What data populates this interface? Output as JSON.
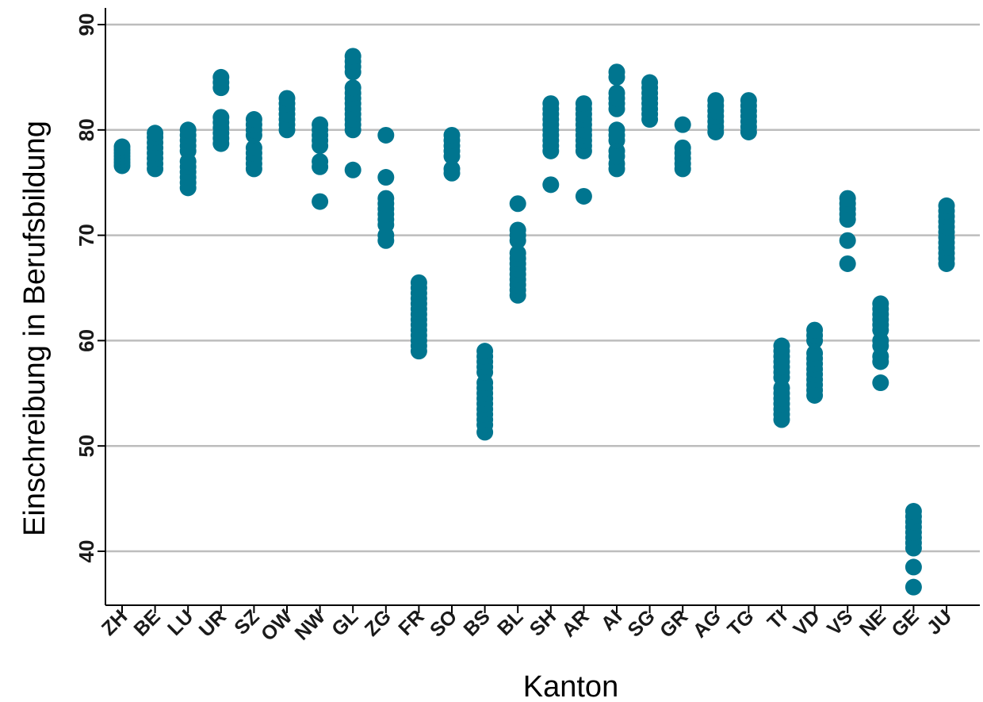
{
  "chart_data": {
    "type": "scatter",
    "title": "",
    "xlabel": "Kanton",
    "ylabel": "Einschreibung in Berufsbildung",
    "ylim": [
      35,
      92
    ],
    "yticks": [
      40,
      50,
      60,
      70,
      80,
      90
    ],
    "ytick_labels": [
      "40",
      "50",
      "60",
      "70",
      "80",
      "90"
    ],
    "grid": "horizontal",
    "legend": "none",
    "marker_color": "#00758F",
    "categories": [
      "ZH",
      "BE",
      "LU",
      "UR",
      "SZ",
      "OW",
      "NW",
      "GL",
      "ZG",
      "FR",
      "SO",
      "BS",
      "BL",
      "SH",
      "AR",
      "AI",
      "SG",
      "GR",
      "AG",
      "TG",
      "TI",
      "VD",
      "VS",
      "NE",
      "GE",
      "JU"
    ],
    "points": [
      {
        "canton": "ZH",
        "values": [
          76.6,
          76.9,
          77.2,
          77.5,
          77.8,
          78.1,
          78.4
        ]
      },
      {
        "canton": "BE",
        "values": [
          76.3,
          76.8,
          77.3,
          77.8,
          78.3,
          78.8,
          79.3,
          79.7
        ]
      },
      {
        "canton": "LU",
        "values": [
          74.5,
          75.0,
          75.5,
          76.0,
          76.5,
          77.0,
          78.0,
          78.5,
          79.0,
          79.5,
          80.0
        ]
      },
      {
        "canton": "UR",
        "values": [
          78.7,
          79.2,
          79.7,
          80.2,
          80.7,
          81.2,
          84.0,
          84.5,
          85.0
        ]
      },
      {
        "canton": "SZ",
        "values": [
          76.3,
          76.8,
          77.3,
          77.8,
          78.3,
          79.5,
          80.0,
          80.5,
          81.0
        ]
      },
      {
        "canton": "OW",
        "values": [
          80.0,
          80.5,
          81.0,
          81.5,
          82.0,
          82.5,
          83.0
        ]
      },
      {
        "canton": "NW",
        "values": [
          73.2,
          76.5,
          77.0,
          78.5,
          79.0,
          79.5,
          80.0,
          80.5
        ]
      },
      {
        "canton": "GL",
        "values": [
          76.2,
          80.0,
          80.5,
          81.0,
          81.5,
          82.0,
          82.5,
          83.0,
          83.5,
          84.0,
          85.5,
          86.0,
          86.5,
          87.0
        ]
      },
      {
        "canton": "ZG",
        "values": [
          69.5,
          70.0,
          71.0,
          71.5,
          72.0,
          72.5,
          73.0,
          73.5,
          75.5,
          79.5
        ]
      },
      {
        "canton": "FR",
        "values": [
          59.0,
          59.5,
          60.0,
          60.5,
          61.0,
          61.5,
          62.0,
          62.5,
          63.0,
          63.5,
          64.0,
          64.5,
          65.0,
          65.5
        ]
      },
      {
        "canton": "SO",
        "values": [
          75.9,
          76.3,
          77.5,
          78.0,
          78.5,
          79.0,
          79.5
        ]
      },
      {
        "canton": "BS",
        "values": [
          51.3,
          52.0,
          52.5,
          53.0,
          53.5,
          54.0,
          54.5,
          55.0,
          55.5,
          56.0,
          57.0,
          57.5,
          58.0,
          58.5,
          59.0
        ]
      },
      {
        "canton": "BL",
        "values": [
          64.3,
          64.8,
          65.3,
          65.8,
          66.3,
          66.8,
          67.3,
          67.8,
          68.3,
          69.5,
          70.0,
          70.5,
          73.0
        ]
      },
      {
        "canton": "SH",
        "values": [
          74.8,
          78.0,
          78.5,
          79.0,
          79.5,
          80.0,
          80.5,
          81.0,
          81.5,
          82.0,
          82.5
        ]
      },
      {
        "canton": "AR",
        "values": [
          73.7,
          78.0,
          78.5,
          79.0,
          79.5,
          80.0,
          80.5,
          81.0,
          81.5,
          82.0,
          82.5
        ]
      },
      {
        "canton": "AI",
        "values": [
          76.3,
          76.8,
          77.5,
          78.0,
          79.0,
          79.5,
          80.0,
          82.0,
          82.5,
          83.0,
          83.5,
          85.0,
          85.5
        ]
      },
      {
        "canton": "SG",
        "values": [
          81.0,
          81.5,
          82.0,
          82.5,
          83.0,
          83.5,
          84.0,
          84.5
        ]
      },
      {
        "canton": "GR",
        "values": [
          76.3,
          76.8,
          77.3,
          77.8,
          78.3,
          80.5
        ]
      },
      {
        "canton": "AG",
        "values": [
          79.8,
          80.3,
          80.8,
          81.3,
          81.8,
          82.3,
          82.8
        ]
      },
      {
        "canton": "TG",
        "values": [
          79.8,
          80.3,
          80.8,
          81.3,
          81.8,
          82.3,
          82.8
        ]
      },
      {
        "canton": "TI",
        "values": [
          52.5,
          53.0,
          53.5,
          54.0,
          54.5,
          55.0,
          55.5,
          56.5,
          57.0,
          57.5,
          58.0,
          58.5,
          59.0,
          59.5
        ]
      },
      {
        "canton": "VD",
        "values": [
          54.8,
          55.3,
          55.8,
          56.3,
          56.8,
          57.3,
          57.8,
          58.3,
          58.8,
          60.0,
          60.5,
          61.0
        ]
      },
      {
        "canton": "VS",
        "values": [
          67.3,
          69.5,
          71.5,
          72.0,
          72.5,
          73.0,
          73.5
        ]
      },
      {
        "canton": "NE",
        "values": [
          56.0,
          58.0,
          58.5,
          59.5,
          60.0,
          61.0,
          61.5,
          62.0,
          62.5,
          63.0,
          63.5
        ]
      },
      {
        "canton": "GE",
        "values": [
          36.6,
          38.5,
          40.3,
          40.8,
          41.3,
          41.8,
          42.3,
          42.8,
          43.3,
          43.8
        ]
      },
      {
        "canton": "JU",
        "values": [
          67.3,
          67.8,
          68.3,
          68.8,
          69.3,
          69.8,
          70.3,
          70.8,
          71.3,
          71.8,
          72.3,
          72.8
        ]
      }
    ]
  }
}
